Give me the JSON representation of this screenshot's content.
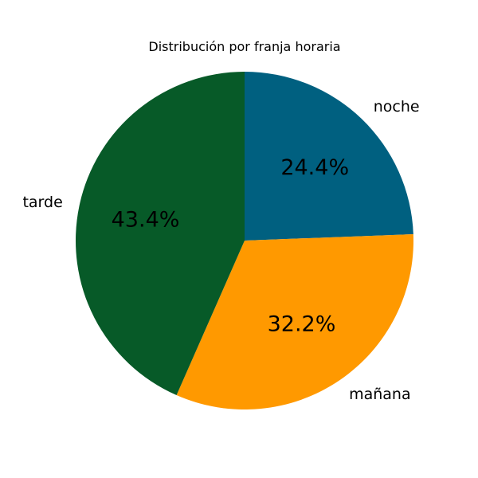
{
  "chart_data": {
    "type": "pie",
    "title": "Distribución por franja horaria",
    "labels": [
      "noche",
      "mañana",
      "tarde"
    ],
    "values": [
      24.4,
      32.2,
      43.4
    ],
    "percent_labels": [
      "24.4%",
      "32.2%",
      "43.4%"
    ],
    "colors": [
      "#006080",
      "#FF9900",
      "#075A28"
    ],
    "start_angle_deg": 90,
    "direction": "clockwise"
  }
}
